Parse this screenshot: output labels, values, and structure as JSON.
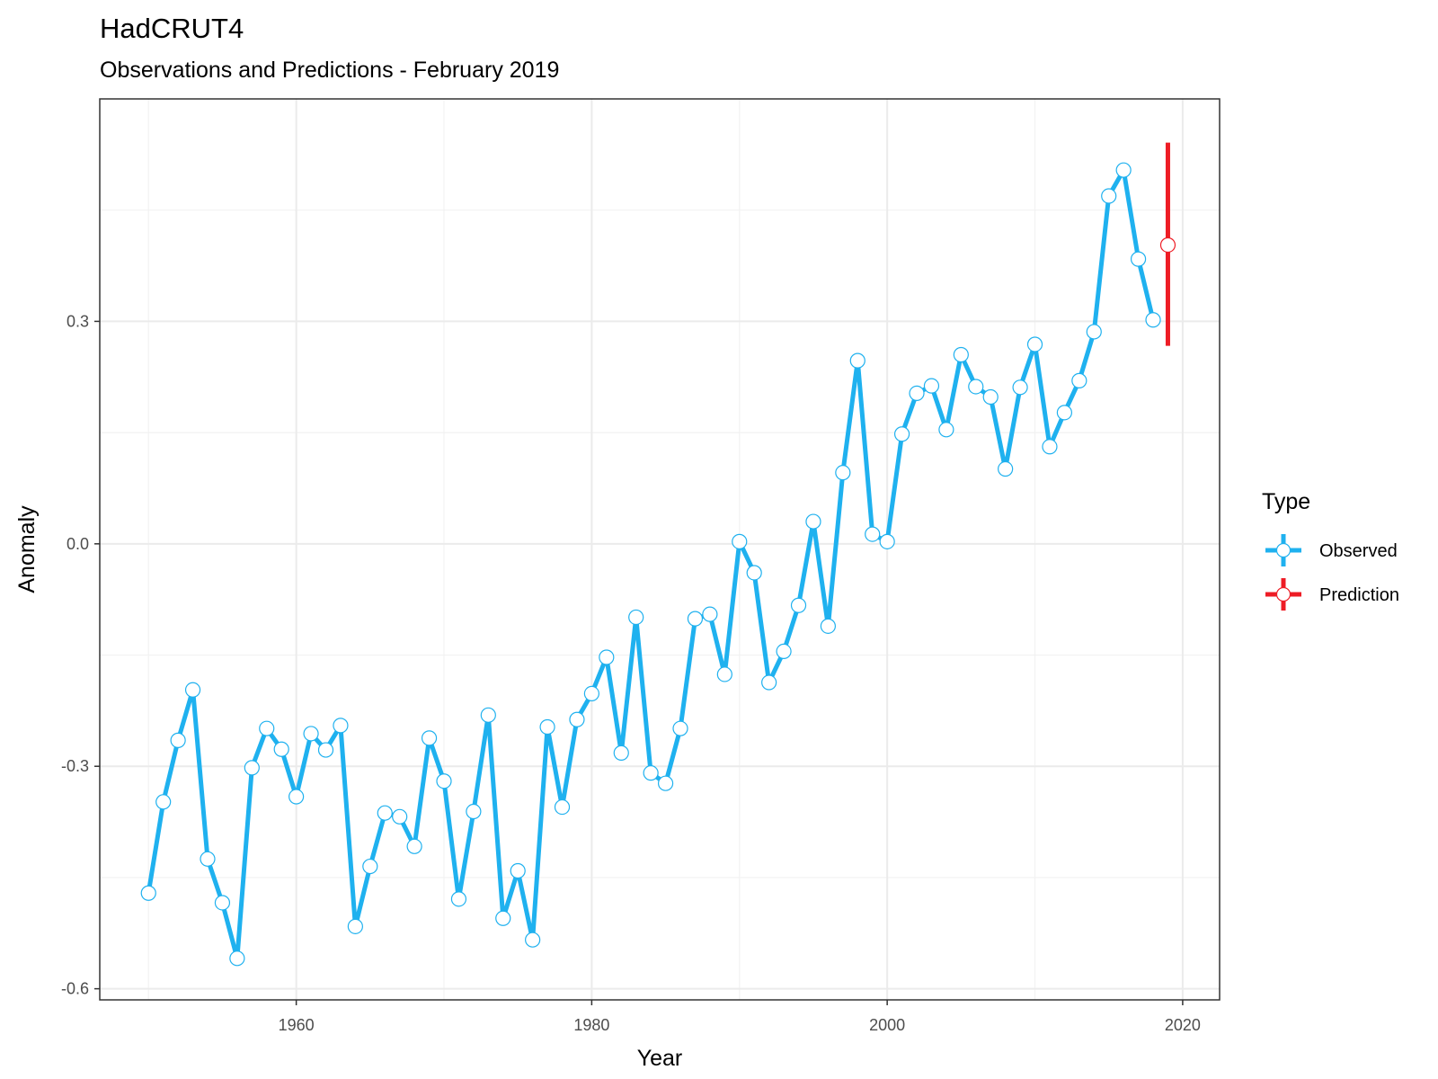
{
  "chart_data": {
    "type": "line",
    "title": "HadCRUT4",
    "subtitle": "Observations and Predictions - February 2019",
    "xlabel": "Year",
    "ylabel": "Anomaly",
    "xlim": [
      1946.7,
      2022.5
    ],
    "ylim": [
      -0.615,
      0.6
    ],
    "x_ticks": [
      1960,
      1980,
      2000,
      2020
    ],
    "x_tick_labels": [
      "1960",
      "1980",
      "2000",
      "2020"
    ],
    "y_ticks": [
      -0.6,
      -0.3,
      0.0,
      0.3
    ],
    "y_tick_labels": [
      "-0.6",
      "-0.3",
      "0.0",
      "0.3"
    ],
    "grid": true,
    "legend": {
      "title": "Type",
      "position": "right",
      "entries": [
        {
          "label": "Observed",
          "color": "#1fb1ef"
        },
        {
          "label": "Prediction",
          "color": "#ee1c25"
        }
      ]
    },
    "series": [
      {
        "name": "Observed",
        "color": "#1fb1ef",
        "x": [
          1950,
          1951,
          1952,
          1953,
          1954,
          1955,
          1956,
          1957,
          1958,
          1959,
          1960,
          1961,
          1962,
          1963,
          1964,
          1965,
          1966,
          1967,
          1968,
          1969,
          1970,
          1971,
          1972,
          1973,
          1974,
          1975,
          1976,
          1977,
          1978,
          1979,
          1980,
          1981,
          1982,
          1983,
          1984,
          1985,
          1986,
          1987,
          1988,
          1989,
          1990,
          1991,
          1992,
          1993,
          1994,
          1995,
          1996,
          1997,
          1998,
          1999,
          2000,
          2001,
          2002,
          2003,
          2004,
          2005,
          2006,
          2007,
          2008,
          2009,
          2010,
          2011,
          2012,
          2013,
          2014,
          2015,
          2016,
          2017,
          2018
        ],
        "values": [
          -0.471,
          -0.348,
          -0.265,
          -0.197,
          -0.425,
          -0.484,
          -0.559,
          -0.302,
          -0.249,
          -0.277,
          -0.341,
          -0.256,
          -0.278,
          -0.245,
          -0.516,
          -0.435,
          -0.363,
          -0.368,
          -0.408,
          -0.262,
          -0.32,
          -0.479,
          -0.361,
          -0.231,
          -0.505,
          -0.441,
          -0.534,
          -0.247,
          -0.355,
          -0.237,
          -0.202,
          -0.153,
          -0.282,
          -0.099,
          -0.309,
          -0.323,
          -0.249,
          -0.101,
          -0.095,
          -0.176,
          0.003,
          -0.039,
          -0.187,
          -0.145,
          -0.083,
          0.03,
          -0.111,
          0.096,
          0.247,
          0.013,
          0.003,
          0.148,
          0.203,
          0.213,
          0.154,
          0.255,
          0.212,
          0.198,
          0.101,
          0.211,
          0.269,
          0.131,
          0.177,
          0.22,
          0.286,
          0.469,
          0.504,
          0.384,
          0.302
        ]
      },
      {
        "name": "Prediction",
        "color": "#ee1c25",
        "x": [
          2019
        ],
        "values": [
          0.403
        ],
        "lower": [
          0.267
        ],
        "upper": [
          0.541
        ]
      }
    ]
  }
}
